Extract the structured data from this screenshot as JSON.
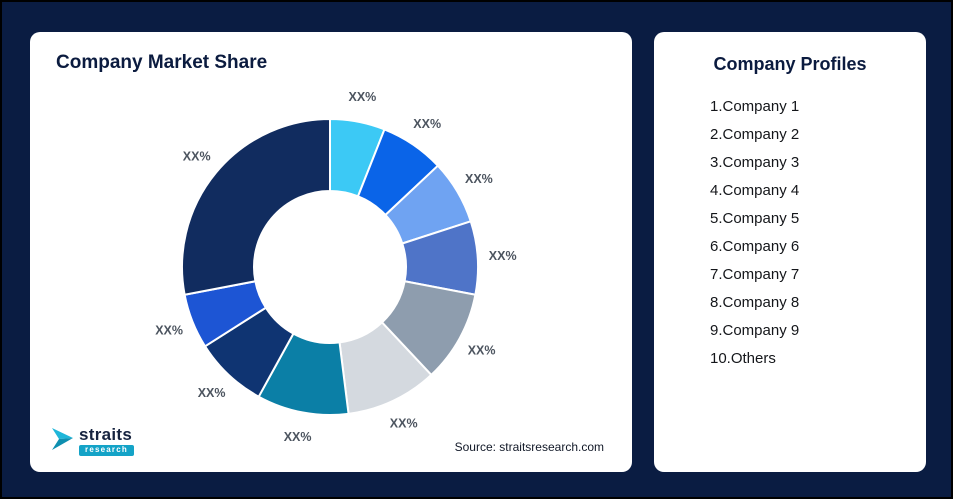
{
  "page": {
    "background": "#0A1C42"
  },
  "left_card": {
    "title": "Company Market Share",
    "source": "Source: straitsresearch.com"
  },
  "logo": {
    "wordmark": "straits",
    "sub": "research"
  },
  "right_card": {
    "title": "Company Profiles",
    "items": [
      "1.Company 1",
      "2.Company 2",
      "3.Company 3",
      "4.Company 4",
      "5.Company 5",
      "6.Company 6",
      "7.Company 7",
      "8.Company 8",
      "9.Company 9",
      "10.Others"
    ]
  },
  "chart_data": {
    "type": "pie",
    "subtype": "donut",
    "title": "Company Market Share",
    "legend_position": "none",
    "values_estimated": true,
    "value_label_shown": "XX%",
    "series": [
      {
        "name": "Company 1",
        "value": 6,
        "display": "XX%",
        "color": "#3CC9F5"
      },
      {
        "name": "Company 2",
        "value": 7,
        "display": "XX%",
        "color": "#0A64E8"
      },
      {
        "name": "Company 3",
        "value": 7,
        "display": "XX%",
        "color": "#6FA3F2"
      },
      {
        "name": "Company 4",
        "value": 8,
        "display": "XX%",
        "color": "#4F74C8"
      },
      {
        "name": "Company 5",
        "value": 10,
        "display": "XX%",
        "color": "#8E9DAE"
      },
      {
        "name": "Company 6",
        "value": 10,
        "display": "XX%",
        "color": "#D4D9DF"
      },
      {
        "name": "Company 7",
        "value": 10,
        "display": "XX%",
        "color": "#0B7FA6"
      },
      {
        "name": "Company 8",
        "value": 8,
        "display": "XX%",
        "color": "#0F3472"
      },
      {
        "name": "Company 9",
        "value": 6,
        "display": "XX%",
        "color": "#1D55D4"
      },
      {
        "name": "Others",
        "value": 28,
        "display": "XX%",
        "color": "#112C5F"
      }
    ]
  }
}
